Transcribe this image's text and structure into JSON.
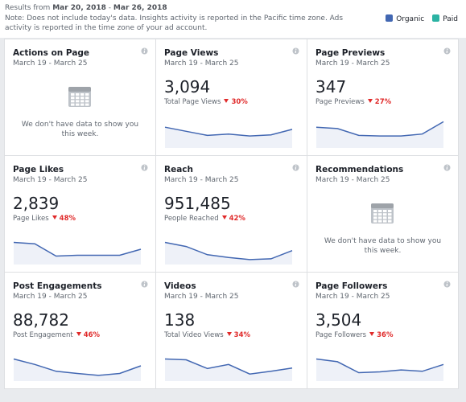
{
  "header": {
    "results_prefix": "Results from",
    "start_date": "Mar 20, 2018",
    "separator": "-",
    "end_date": "Mar 26, 2018",
    "note": "Note: Does not include today's data. Insights activity is reported in the Pacific time zone. Ads activity is reported in the time zone of your ad account.",
    "legend": [
      {
        "name": "Organic",
        "color": "#4267b2"
      },
      {
        "name": "Paid",
        "color": "#2bb3a3"
      }
    ]
  },
  "cards": [
    {
      "title": "Actions on Page",
      "dates": "March 19 - March 25",
      "empty_message": "We don't have data to show you this week."
    },
    {
      "title": "Page Views",
      "dates": "March 19 - March 25",
      "value": "3,094",
      "label": "Total Page Views",
      "change": "30%",
      "sparkline": [
        70,
        55,
        40,
        45,
        38,
        42,
        62
      ]
    },
    {
      "title": "Page Previews",
      "dates": "March 19 - March 25",
      "value": "347",
      "label": "Page Previews",
      "change": "27%",
      "sparkline": [
        70,
        65,
        40,
        38,
        38,
        45,
        90
      ]
    },
    {
      "title": "Page Likes",
      "dates": "March 19 - March 25",
      "value": "2,839",
      "label": "Page Likes",
      "change": "48%",
      "sparkline": [
        75,
        70,
        25,
        28,
        28,
        28,
        50
      ]
    },
    {
      "title": "Reach",
      "dates": "March 19 - March 25",
      "value": "951,485",
      "label": "People Reached",
      "change": "42%",
      "sparkline": [
        75,
        60,
        30,
        20,
        12,
        15,
        45
      ]
    },
    {
      "title": "Recommendations",
      "dates": "March 19 - March 25",
      "empty_message": "We don't have data to show you this week."
    },
    {
      "title": "Post Engagements",
      "dates": "March 19 - March 25",
      "value": "88,782",
      "label": "Post Engagement",
      "change": "46%",
      "sparkline": [
        75,
        55,
        30,
        22,
        15,
        22,
        50
      ]
    },
    {
      "title": "Videos",
      "dates": "March 19 - March 25",
      "value": "138",
      "label": "Total Video Views",
      "change": "34%",
      "sparkline": [
        75,
        72,
        40,
        55,
        20,
        30,
        42
      ]
    },
    {
      "title": "Page Followers",
      "dates": "March 19 - March 25",
      "value": "3,504",
      "label": "Page Followers",
      "change": "36%",
      "sparkline": [
        75,
        65,
        25,
        28,
        35,
        30,
        55
      ]
    }
  ]
}
